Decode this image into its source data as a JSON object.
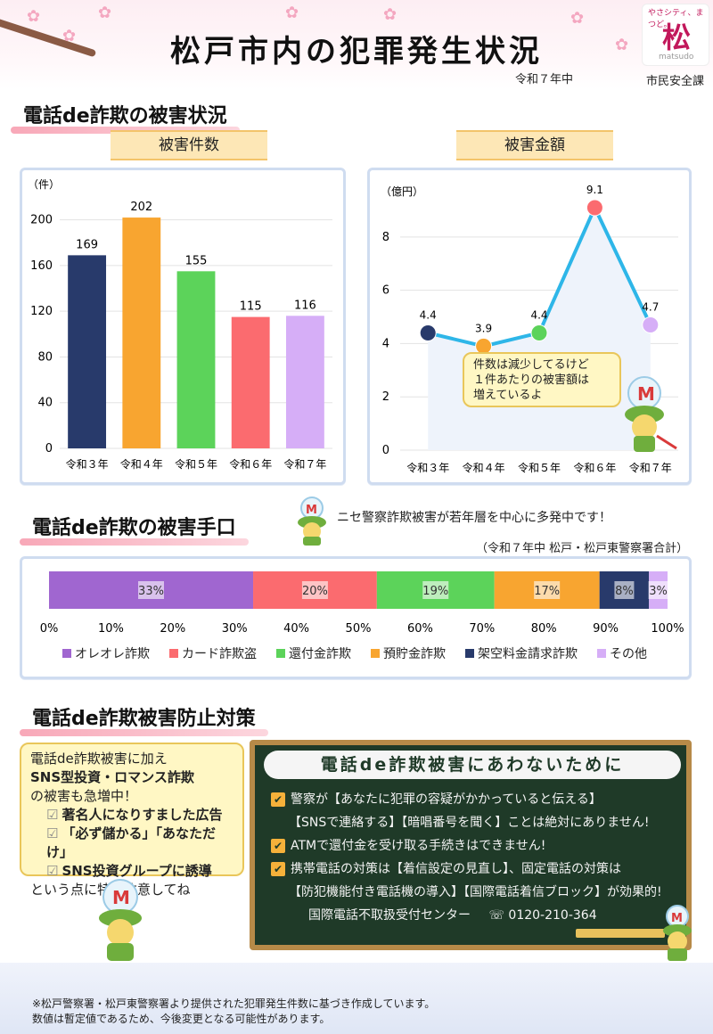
{
  "header": {
    "title": "松戸市内の犯罪発生状況",
    "period": "令和７年中",
    "department": "市民安全課",
    "logo_arc": "やさシティ、まつど。",
    "logo_main": "松",
    "logo_sub": "matsudo"
  },
  "section1": {
    "heading": "電話de詐欺の被害状況"
  },
  "section2": {
    "heading": "電話de詐欺の被害手口",
    "note": "ニセ警察詐欺被害が若年層を中心に多発中です！",
    "source": "（令和７年中 松戸・松戸東警察署合計）"
  },
  "section3": {
    "heading": "電話de詐欺被害防止対策"
  },
  "mascot_bubble": "件数は減少してるけど\n１件あたりの被害額は\n増えているよ",
  "tips": {
    "line1": "電話de詐欺被害に加え",
    "line2": "SNS型投資・ロマンス詐欺",
    "line3": "の被害も急増中！",
    "check1": "著名人になりすました広告",
    "check2": "「必ず儲かる」「あなただけ」",
    "check3": "SNS投資グループに誘導",
    "line4": "という点に特に注意してね"
  },
  "board": {
    "title": "電話de詐欺被害にあわないために",
    "item1": "警察が【あなたに犯罪の容疑がかかっていると伝える】",
    "item1b": "【SNSで連絡する】【暗唱番号を聞く】ことは絶対にありません!",
    "item2": "ATMで還付金を受け取る手続きはできません!",
    "item3": "携帯電話の対策は【着信設定の見直し】、固定電話の対策は",
    "item3b": "【防犯機能付き電話機の導入】【国際電話着信ブロック】が効果的!",
    "phone_label": "国際電話不取扱受付センター",
    "phone_number": "0120-210-364"
  },
  "footer": {
    "line1": "※松戸警察署・松戸東警察署より提供された犯罪発生件数に基づき作成しています。",
    "line2": "数値は暫定値であるため、今後変更となる可能性があります。"
  },
  "chart_data": [
    {
      "type": "bar",
      "title": "被害件数",
      "ylabel": "（件）",
      "categories": [
        "令和３年",
        "令和４年",
        "令和５年",
        "令和６年",
        "令和７年"
      ],
      "values": [
        169,
        202,
        155,
        115,
        116
      ],
      "ylim": [
        0,
        220
      ],
      "yticks": [
        0,
        40,
        80,
        120,
        160,
        200
      ],
      "colors": [
        "#283a6b",
        "#f8a530",
        "#5cd35a",
        "#fb6b6f",
        "#d6aef7"
      ],
      "grid": true
    },
    {
      "type": "line",
      "title": "被害金額",
      "ylabel": "（億円）",
      "categories": [
        "令和３年",
        "令和４年",
        "令和５年",
        "令和６年",
        "令和７年"
      ],
      "values": [
        4.4,
        3.9,
        4.4,
        9.1,
        4.7
      ],
      "value_labels": [
        "4.4",
        "3.9",
        "4.4",
        "9.1",
        "4.7"
      ],
      "ylim": [
        0,
        9.5
      ],
      "yticks": [
        0,
        2,
        4,
        6,
        8
      ],
      "line_color": "#2eb6e8",
      "colors": [
        "#283a6b",
        "#f8a530",
        "#5cd35a",
        "#fb6b6f",
        "#d6aef7"
      ],
      "grid": true
    },
    {
      "type": "bar",
      "orientation": "stacked-horizontal",
      "categories": [
        "オレオレ詐欺",
        "カード詐欺盗",
        "還付金詐欺",
        "預貯金詐欺",
        "架空料金請求詐欺",
        "その他"
      ],
      "values": [
        33,
        20,
        19,
        17,
        8,
        3
      ],
      "value_labels": [
        "33%",
        "20%",
        "19%",
        "17%",
        "8%",
        "3%"
      ],
      "colors": [
        "#a066d0",
        "#fb6b6f",
        "#5cd35a",
        "#f8a530",
        "#283a6b",
        "#d6aef7"
      ],
      "xticks": [
        "0%",
        "10%",
        "20%",
        "30%",
        "40%",
        "50%",
        "60%",
        "70%",
        "80%",
        "90%",
        "100%"
      ],
      "legend": "bottom"
    }
  ]
}
